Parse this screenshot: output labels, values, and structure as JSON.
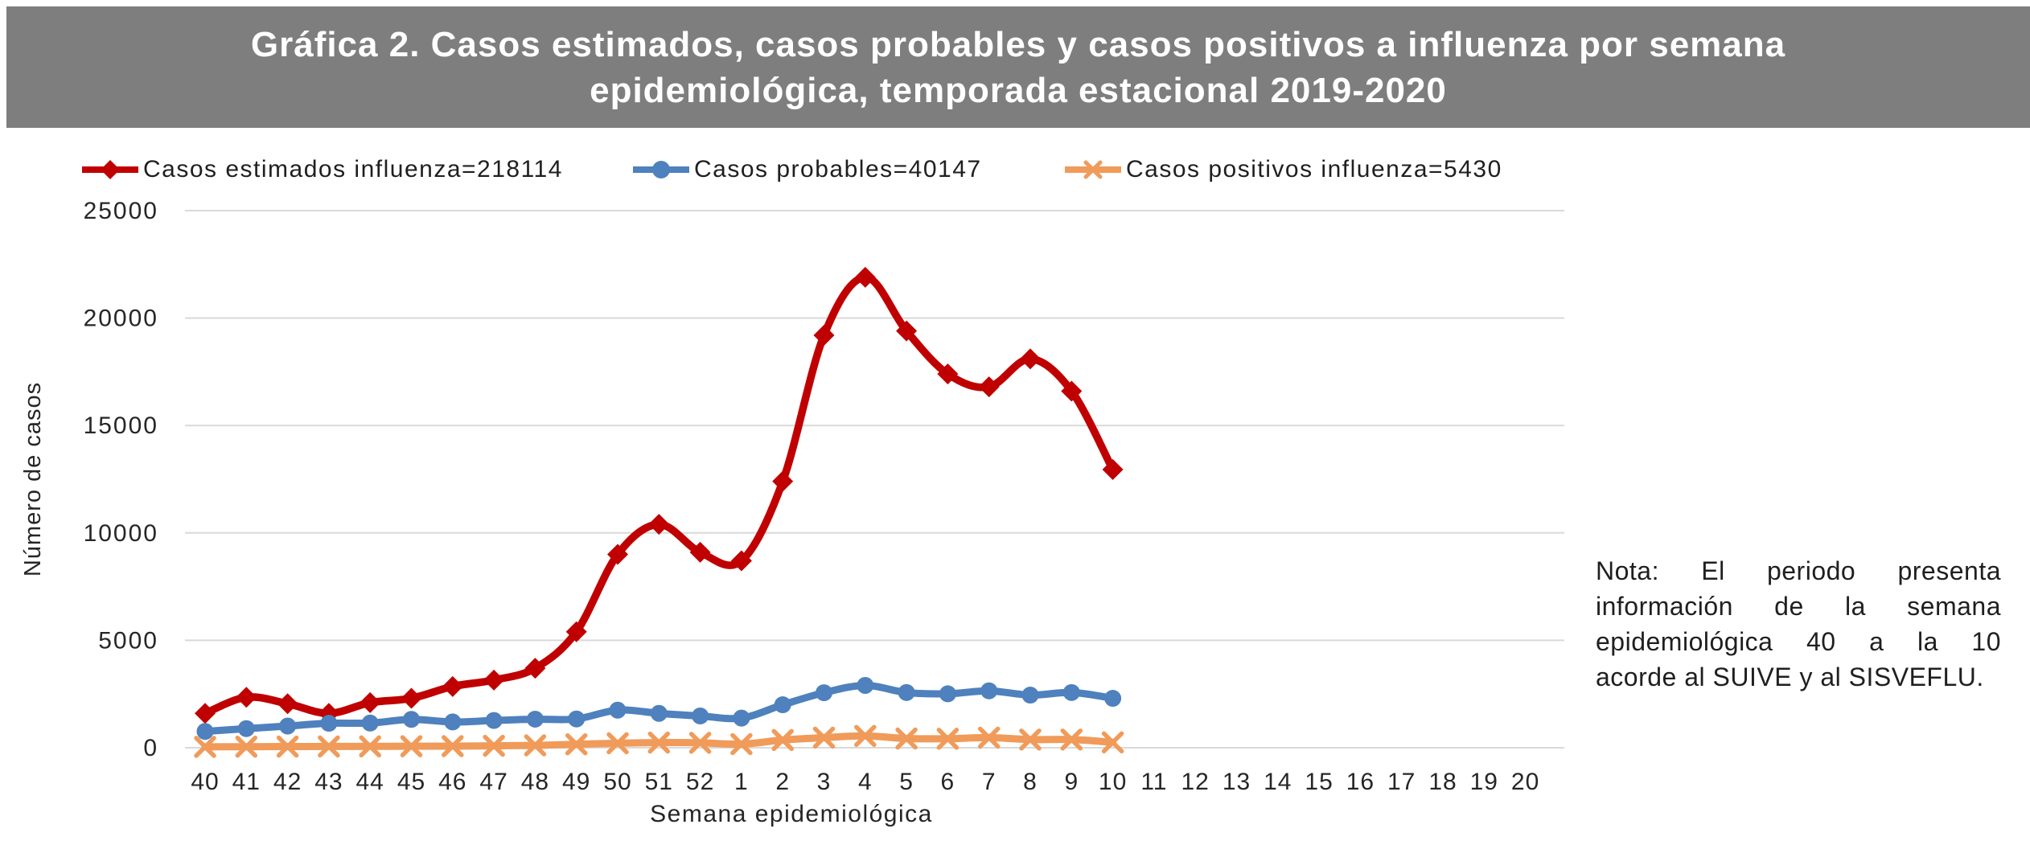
{
  "header": {
    "line1": "Gráfica 2. Casos estimados, casos probables y casos positivos a influenza por semana",
    "line2": "epidemiológica, temporada estacional 2019-2020",
    "bg_color": "#7E7E7E",
    "text_color": "#FFFFFF"
  },
  "note": {
    "lines": [
      "Nota: El periodo presenta",
      "información de la semana",
      "epidemiológica 40 a la 10",
      "acorde al SUIVE y al SISVEFLU."
    ]
  },
  "colors": {
    "gridline": "#D9D9D9",
    "axis_text": "#262626"
  },
  "chart_data": {
    "type": "line",
    "title": "Gráfica 2. Casos estimados, casos probables y casos positivos a influenza por semana epidemiológica, temporada estacional 2019-2020",
    "xlabel": "Semana epidemiológica",
    "ylabel": "Número de casos",
    "ylim": [
      0,
      25000
    ],
    "yticks": [
      0,
      5000,
      10000,
      15000,
      20000,
      25000
    ],
    "grid": "horizontal",
    "legend_position": "top",
    "smooth_lines": true,
    "categories": [
      "40",
      "41",
      "42",
      "43",
      "44",
      "45",
      "46",
      "47",
      "48",
      "49",
      "50",
      "51",
      "52",
      "1",
      "2",
      "3",
      "4",
      "5",
      "6",
      "7",
      "8",
      "9",
      "10",
      "11",
      "12",
      "13",
      "14",
      "15",
      "16",
      "17",
      "18",
      "19",
      "20"
    ],
    "series": [
      {
        "name": "Casos estimados influenza=218114",
        "total": 218114,
        "color": "#C00000",
        "marker": "diamond",
        "values": [
          1600,
          2350,
          2050,
          1600,
          2100,
          2300,
          2850,
          3150,
          3700,
          5400,
          9000,
          10400,
          9100,
          8700,
          12400,
          19200,
          21900,
          19400,
          17400,
          16800,
          18100,
          16600,
          12950
        ]
      },
      {
        "name": "Casos probables=40147",
        "total": 40147,
        "color": "#4E81BD",
        "marker": "circle",
        "values": [
          760,
          890,
          1010,
          1140,
          1150,
          1320,
          1200,
          1270,
          1330,
          1340,
          1750,
          1600,
          1480,
          1380,
          2000,
          2560,
          2900,
          2570,
          2510,
          2650,
          2450,
          2570,
          2300
        ]
      },
      {
        "name": "Casos positivos influenza=5430",
        "total": 5430,
        "color": "#F09B5A",
        "marker": "x",
        "values": [
          40,
          50,
          55,
          60,
          65,
          70,
          75,
          90,
          110,
          160,
          210,
          240,
          230,
          170,
          360,
          470,
          550,
          430,
          420,
          470,
          380,
          380,
          250
        ]
      }
    ]
  }
}
